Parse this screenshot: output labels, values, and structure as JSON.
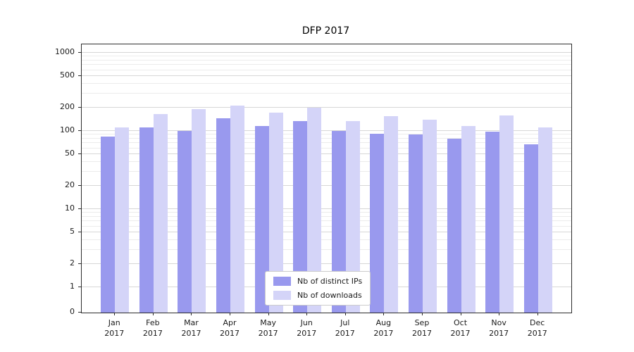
{
  "chart_data": {
    "type": "bar",
    "title": "DFP 2017",
    "yscale": "symlog",
    "ylim": [
      0,
      1000
    ],
    "y_ticks": [
      0,
      1,
      2,
      5,
      10,
      20,
      50,
      100,
      200,
      500,
      1000
    ],
    "grid": true,
    "legend_position": "lower center inside",
    "categories": [
      "Jan 2017",
      "Feb 2017",
      "Mar 2017",
      "Apr 2017",
      "May 2017",
      "Jun 2017",
      "Jul 2017",
      "Aug 2017",
      "Sep 2017",
      "Oct 2017",
      "Nov 2017",
      "Dec 2017"
    ],
    "series": [
      {
        "name": "Nb of distinct IPs",
        "color": "#9999ee",
        "values": [
          85,
          110,
          100,
          145,
          115,
          135,
          100,
          92,
          90,
          80,
          98,
          68
        ]
      },
      {
        "name": "Nb of downloads",
        "color": "#d4d4f8",
        "values": [
          110,
          165,
          190,
          210,
          170,
          200,
          135,
          155,
          140,
          115,
          158,
          112
        ]
      }
    ]
  }
}
